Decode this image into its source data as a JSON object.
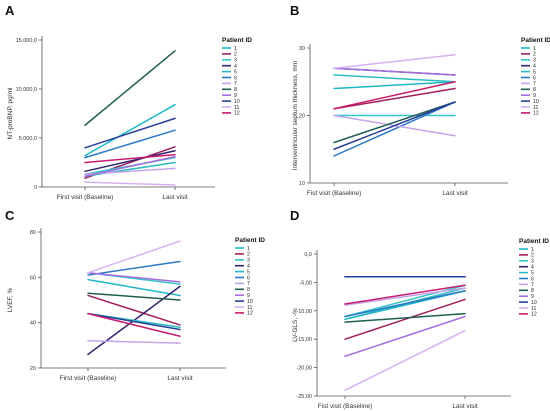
{
  "patients": [
    "1",
    "2",
    "3",
    "4",
    "5",
    "6",
    "7",
    "8",
    "9",
    "10",
    "11",
    "12"
  ],
  "patient_colors": [
    "#1fb8c7",
    "#a01f5a",
    "#37c6c8",
    "#32236e",
    "#2bbac0",
    "#2a78c8",
    "#c2a4ea",
    "#1f5e52",
    "#a76ee0",
    "#263f96",
    "#d6b0f2",
    "#c81d6e"
  ],
  "chart_data": [
    {
      "panel": "A",
      "type": "line",
      "categories": [
        "First visit (Baseline)",
        "Last visit"
      ],
      "ylabel": "NT-proBNP, pg/ml",
      "ylim": [
        0,
        15000
      ],
      "yticks": [
        "0",
        "5.000,0",
        "10.000,0",
        "15.000,0"
      ],
      "ytick_values": [
        0,
        5000,
        10000,
        15000
      ],
      "legend_title": "Patient ID",
      "legend_position": "right",
      "series": [
        {
          "name": "1",
          "values": [
            3200,
            8400
          ]
        },
        {
          "name": "2",
          "values": [
            900,
            4100
          ]
        },
        {
          "name": "3",
          "values": [
            1300,
            3000
          ]
        },
        {
          "name": "4",
          "values": [
            1600,
            3700
          ]
        },
        {
          "name": "5",
          "values": [
            1100,
            2500
          ]
        },
        {
          "name": "6",
          "values": [
            3000,
            5800
          ]
        },
        {
          "name": "7",
          "values": [
            1300,
            1900
          ]
        },
        {
          "name": "8",
          "values": [
            6300,
            13900
          ]
        },
        {
          "name": "9",
          "values": [
            1100,
            3100
          ]
        },
        {
          "name": "10",
          "values": [
            4000,
            7000
          ]
        },
        {
          "name": "11",
          "values": [
            500,
            200
          ]
        },
        {
          "name": "12",
          "values": [
            2500,
            3300
          ]
        }
      ]
    },
    {
      "panel": "B",
      "type": "line",
      "categories": [
        "Fist visit (Baseline)",
        "Last visit"
      ],
      "ylabel": "Interventricular septum thickness, mm",
      "ylim": [
        10,
        30
      ],
      "yticks": [
        "10",
        "20",
        "30"
      ],
      "ytick_values": [
        10,
        20,
        30
      ],
      "legend_title": "Patient ID",
      "legend_position": "right",
      "series": [
        {
          "name": "1",
          "values": [
            24,
            25
          ]
        },
        {
          "name": "2",
          "values": [
            21,
            24
          ]
        },
        {
          "name": "3",
          "values": [
            20,
            20
          ]
        },
        {
          "name": "4",
          "values": [
            27,
            26
          ]
        },
        {
          "name": "5",
          "values": [
            26,
            25
          ]
        },
        {
          "name": "6",
          "values": [
            14,
            22
          ]
        },
        {
          "name": "7",
          "values": [
            20,
            17
          ]
        },
        {
          "name": "8",
          "values": [
            16,
            22
          ]
        },
        {
          "name": "9",
          "values": [
            27,
            26
          ]
        },
        {
          "name": "10",
          "values": [
            15,
            22
          ]
        },
        {
          "name": "11",
          "values": [
            27,
            29
          ]
        },
        {
          "name": "12",
          "values": [
            21,
            25
          ]
        }
      ]
    },
    {
      "panel": "C",
      "type": "line",
      "categories": [
        "First visit (Baseline)",
        "Last visit"
      ],
      "ylabel": "LVEF, %",
      "ylim": [
        20,
        80
      ],
      "yticks": [
        "20",
        "40",
        "60",
        "80"
      ],
      "ytick_values": [
        20,
        40,
        60,
        80
      ],
      "legend_title": "Patient ID",
      "legend_position": "right",
      "series": [
        {
          "name": "1",
          "values": [
            59,
            52
          ]
        },
        {
          "name": "2",
          "values": [
            52,
            39
          ]
        },
        {
          "name": "3",
          "values": [
            62,
            57
          ]
        },
        {
          "name": "4",
          "values": [
            26,
            56
          ]
        },
        {
          "name": "5",
          "values": [
            44,
            38
          ]
        },
        {
          "name": "6",
          "values": [
            61,
            67
          ]
        },
        {
          "name": "7",
          "values": [
            32,
            31
          ]
        },
        {
          "name": "8",
          "values": [
            53,
            50
          ]
        },
        {
          "name": "9",
          "values": [
            62,
            58
          ]
        },
        {
          "name": "10",
          "values": [
            44,
            37
          ]
        },
        {
          "name": "11",
          "values": [
            62,
            76
          ]
        },
        {
          "name": "12",
          "values": [
            44,
            34
          ]
        }
      ]
    },
    {
      "panel": "D",
      "type": "line",
      "categories": [
        "Fist visit (Baseline)",
        "Last visit"
      ],
      "ylabel": "LV-GLS, -%",
      "ylim": [
        -25,
        0
      ],
      "yticks": [
        "0,0",
        "-5,00",
        "-10,00",
        "-15,00",
        "-20,00",
        "-25,00"
      ],
      "ytick_values": [
        0,
        -5,
        -10,
        -15,
        -20,
        -25
      ],
      "legend_title": "Patient ID",
      "legend_position": "right",
      "series": [
        {
          "name": "1",
          "values": [
            -11.5,
            -6.5
          ]
        },
        {
          "name": "2",
          "values": [
            -15,
            -8
          ]
        },
        {
          "name": "3",
          "values": [
            -11,
            -5.5
          ]
        },
        {
          "name": "4",
          "values": [
            -4,
            -4
          ]
        },
        {
          "name": "5",
          "values": [
            -11.5,
            -6
          ]
        },
        {
          "name": "6",
          "values": [
            -11,
            -6.5
          ]
        },
        {
          "name": "7",
          "values": [
            -9,
            -6
          ]
        },
        {
          "name": "8",
          "values": [
            -12,
            -10.5
          ]
        },
        {
          "name": "9",
          "values": [
            -18,
            -11
          ]
        },
        {
          "name": "10",
          "values": [
            -4,
            -4
          ]
        },
        {
          "name": "11",
          "values": [
            -24,
            -13.5
          ]
        },
        {
          "name": "12",
          "values": [
            -8.8,
            -5.5
          ]
        }
      ]
    }
  ]
}
